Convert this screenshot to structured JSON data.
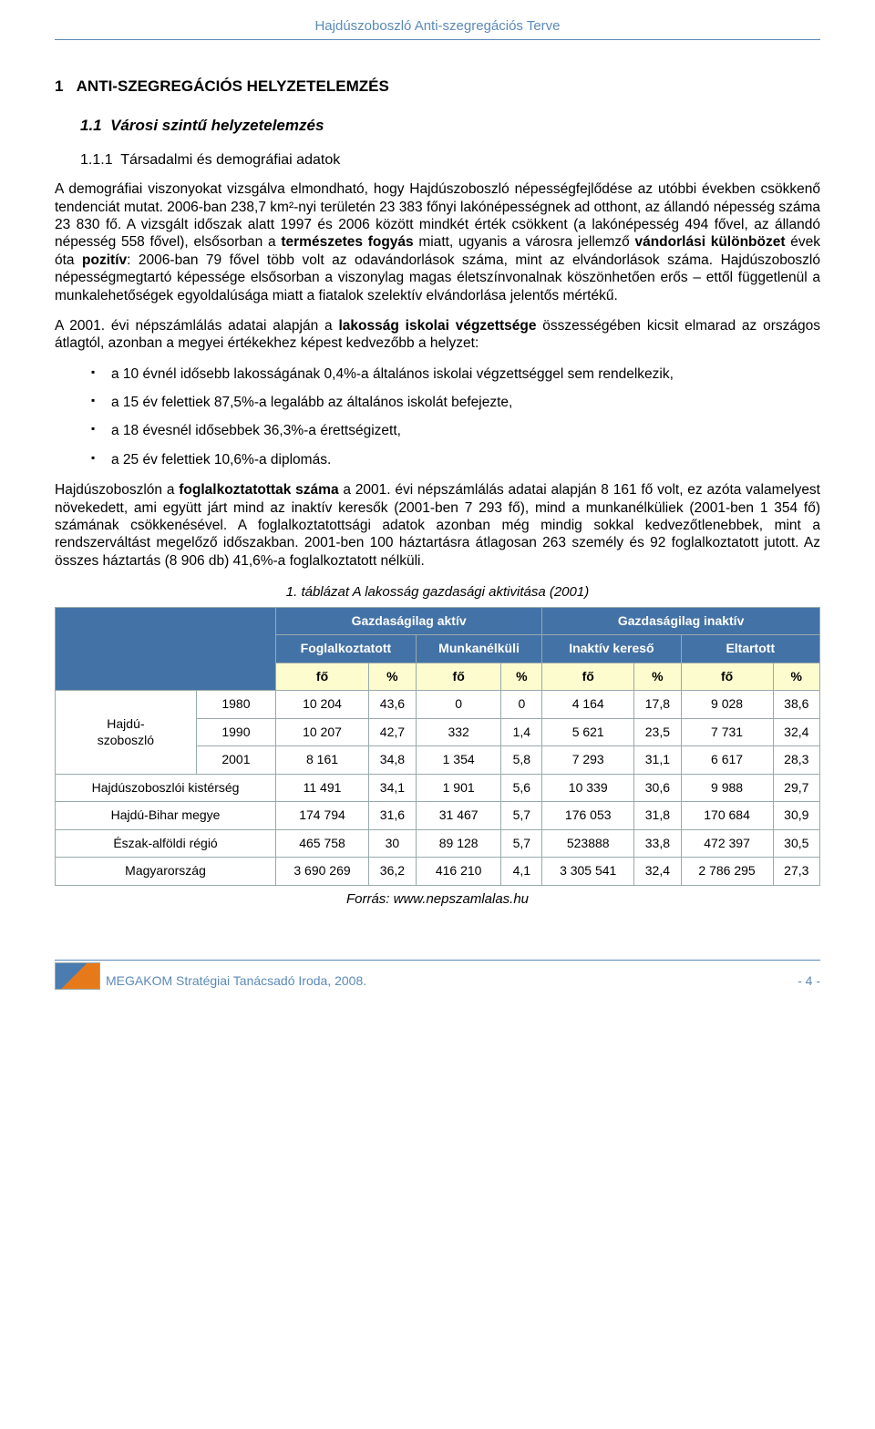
{
  "header": {
    "running_title": "Hajdúszoboszló Anti-szegregációs Terve"
  },
  "section": {
    "number": "1",
    "title": "ANTI-SZEGREGÁCIÓS HELYZETELEMZÉS",
    "sub_number": "1.1",
    "sub_title": "Városi szintű helyzetelemzés",
    "subsub_number": "1.1.1",
    "subsub_title": "Társadalmi és demográfiai adatok"
  },
  "paragraphs": {
    "p1": "A demográfiai viszonyokat vizsgálva elmondható, hogy Hajdúszoboszló népességfejlődése az utóbbi években csökkenő tendenciát mutat. 2006-ban 238,7 km²-nyi területén 23 383 főnyi lakónépességnek ad otthont, az állandó népesség száma 23 830 fő. A vizsgált időszak alatt 1997 és 2006 között mindkét érték csökkent (a lakónépesség 494 fővel, az állandó népesség 558 fővel), elsősorban a természetes fogyás miatt, ugyanis a városra jellemző vándorlási különbözet évek óta pozitív: 2006-ban 79 fővel több volt az odavándorlások száma, mint az elvándorlások száma. Hajdúszoboszló népességmegtartó képessége elsősorban a viszonylag magas életszínvonalnak köszönhetően erős – ettől függetlenül a munkalehetőségek egyoldalúsága miatt a fiatalok szelektív elvándorlása jelentős mértékű.",
    "p2": "A 2001. évi népszámlálás adatai alapján a lakosság iskolai végzettsége összességében kicsit elmarad az országos átlagtól, azonban a megyei értékekhez képest kedvezőbb a helyzet:",
    "p3": "Hajdúszoboszlón a foglalkoztatottak száma a 2001. évi népszámlálás adatai alapján 8 161 fő volt, ez azóta valamelyest növekedett, ami együtt járt mind az inaktív keresők (2001-ben 7 293 fő), mind a munkanélküliek (2001-ben 1 354 fő) számának csökkenésével. A foglalkoztatottsági adatok azonban még mindig sokkal kedvezőtlenebbek, mint a rendszerváltást megelőző időszakban. 2001-ben 100 háztartásra átlagosan 263 személy és 92 foglalkoztatott jutott. Az összes háztartás (8 906 db) 41,6%-a foglalkoztatott nélküli."
  },
  "bullets": {
    "b1": "a 10 évnél idősebb lakosságának 0,4%-a általános iskolai végzettséggel sem rendelkezik,",
    "b2": "a 15 év felettiek 87,5%-a legalább az általános iskolát befejezte,",
    "b3": "a 18 évesnél idősebbek 36,3%-a érettségizett,",
    "b4": "a 25 év felettiek 10,6%-a diplomás."
  },
  "table": {
    "caption": "1. táblázat A lakosság gazdasági aktivitása (2001)",
    "header_groups": {
      "active": "Gazdaságilag aktív",
      "inactive": "Gazdaságilag inaktív",
      "employed": "Foglalkoztatott",
      "unemployed": "Munkanélküli",
      "inactive_earner": "Inaktív kereső",
      "dependent": "Eltartott",
      "unit_person": "fő",
      "unit_pct": "%"
    },
    "rows": [
      {
        "label": "Hajdú-\nszoboszló",
        "is_group": true,
        "subrows": [
          {
            "year": "1980",
            "v": [
              "10 204",
              "43,6",
              "0",
              "0",
              "4 164",
              "17,8",
              "9 028",
              "38,6"
            ]
          },
          {
            "year": "1990",
            "v": [
              "10 207",
              "42,7",
              "332",
              "1,4",
              "5 621",
              "23,5",
              "7 731",
              "32,4"
            ]
          },
          {
            "year": "2001",
            "v": [
              "8 161",
              "34,8",
              "1 354",
              "5,8",
              "7 293",
              "31,1",
              "6 617",
              "28,3"
            ]
          }
        ]
      },
      {
        "label": "Hajdúszoboszlói kistérség",
        "v": [
          "11 491",
          "34,1",
          "1 901",
          "5,6",
          "10 339",
          "30,6",
          "9 988",
          "29,7"
        ]
      },
      {
        "label": "Hajdú-Bihar megye",
        "v": [
          "174 794",
          "31,6",
          "31 467",
          "5,7",
          "176 053",
          "31,8",
          "170 684",
          "30,9"
        ]
      },
      {
        "label": "Észak-alföldi régió",
        "v": [
          "465 758",
          "30",
          "89 128",
          "5,7",
          "523888",
          "33,8",
          "472 397",
          "30,5"
        ]
      },
      {
        "label": "Magyarország",
        "v": [
          "3 690 269",
          "36,2",
          "416 210",
          "4,1",
          "3 305 541",
          "32,4",
          "2 786 295",
          "27,3"
        ]
      }
    ],
    "source": "Forrás: www.nepszamlalas.hu",
    "colors": {
      "header_blue_bg": "#4372a6",
      "header_blue_fg": "#ffffff",
      "header_yellow_bg": "#fdfccf",
      "border": "#9aa"
    }
  },
  "footer": {
    "org": "MEGAKOM Stratégiai Tanácsadó Iroda, 2008.",
    "page": "- 4 -"
  }
}
